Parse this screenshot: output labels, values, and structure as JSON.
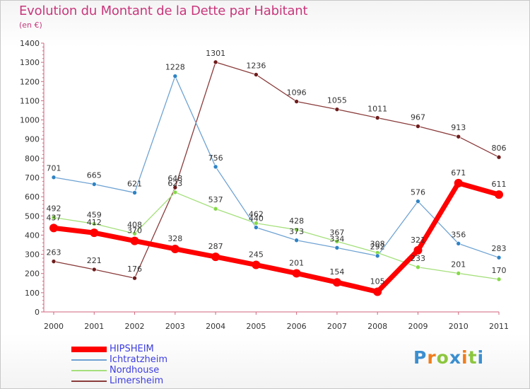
{
  "header": {
    "title": "Evolution du Montant de la Dette par Habitant",
    "unit": "(en €)"
  },
  "brand": {
    "letters": [
      "P",
      "r",
      "o",
      "x",
      "i",
      "t",
      "i"
    ],
    "colors": [
      "#3b8fd0",
      "#f07d1b",
      "#8cc63e",
      "#3b8fd0",
      "#f07d1b",
      "#8cc63e",
      "#3b8fd0"
    ]
  },
  "chart_data": {
    "type": "line",
    "x": [
      "2000",
      "2001",
      "2002",
      "2003",
      "2004",
      "2005",
      "2006",
      "2007",
      "2008",
      "2009",
      "2010",
      "2011"
    ],
    "ylim": [
      0,
      1400
    ],
    "yticks": [
      0,
      100,
      200,
      300,
      400,
      500,
      600,
      700,
      800,
      900,
      1000,
      1100,
      1200,
      1300,
      1400
    ],
    "grid": false,
    "legend_position": "bottom-left",
    "series": [
      {
        "name": "HIPSHEIM",
        "color": "#ff0000",
        "marker": "#ff0000",
        "width": 7,
        "values": [
          437,
          412,
          370,
          328,
          287,
          245,
          201,
          154,
          105,
          321,
          671,
          611
        ]
      },
      {
        "name": "Ichtratzheim",
        "color": "#6fa3d3",
        "marker": "#2f83c4",
        "width": 1.3,
        "values": [
          701,
          665,
          621,
          null,
          756,
          440,
          373,
          334,
          292,
          576,
          356,
          283
        ]
      },
      {
        "name": "Nordhouse",
        "color": "#a5e07c",
        "marker": "#86d94a",
        "width": 1.3,
        "values": [
          492,
          459,
          408,
          623,
          537,
          462,
          428,
          367,
          308,
          233,
          201,
          170
        ]
      },
      {
        "name": "Limersheim",
        "color": "#8a3b3b",
        "marker": "#6e1c1c",
        "width": 1.3,
        "values": [
          263,
          221,
          176,
          648,
          1301,
          1236,
          1096,
          1055,
          1011,
          967,
          913,
          806
        ]
      }
    ],
    "bridges": [
      {
        "series": 1,
        "from": [
          2,
          621
        ],
        "to": [
          3,
          1228
        ],
        "label": "1228"
      }
    ]
  }
}
